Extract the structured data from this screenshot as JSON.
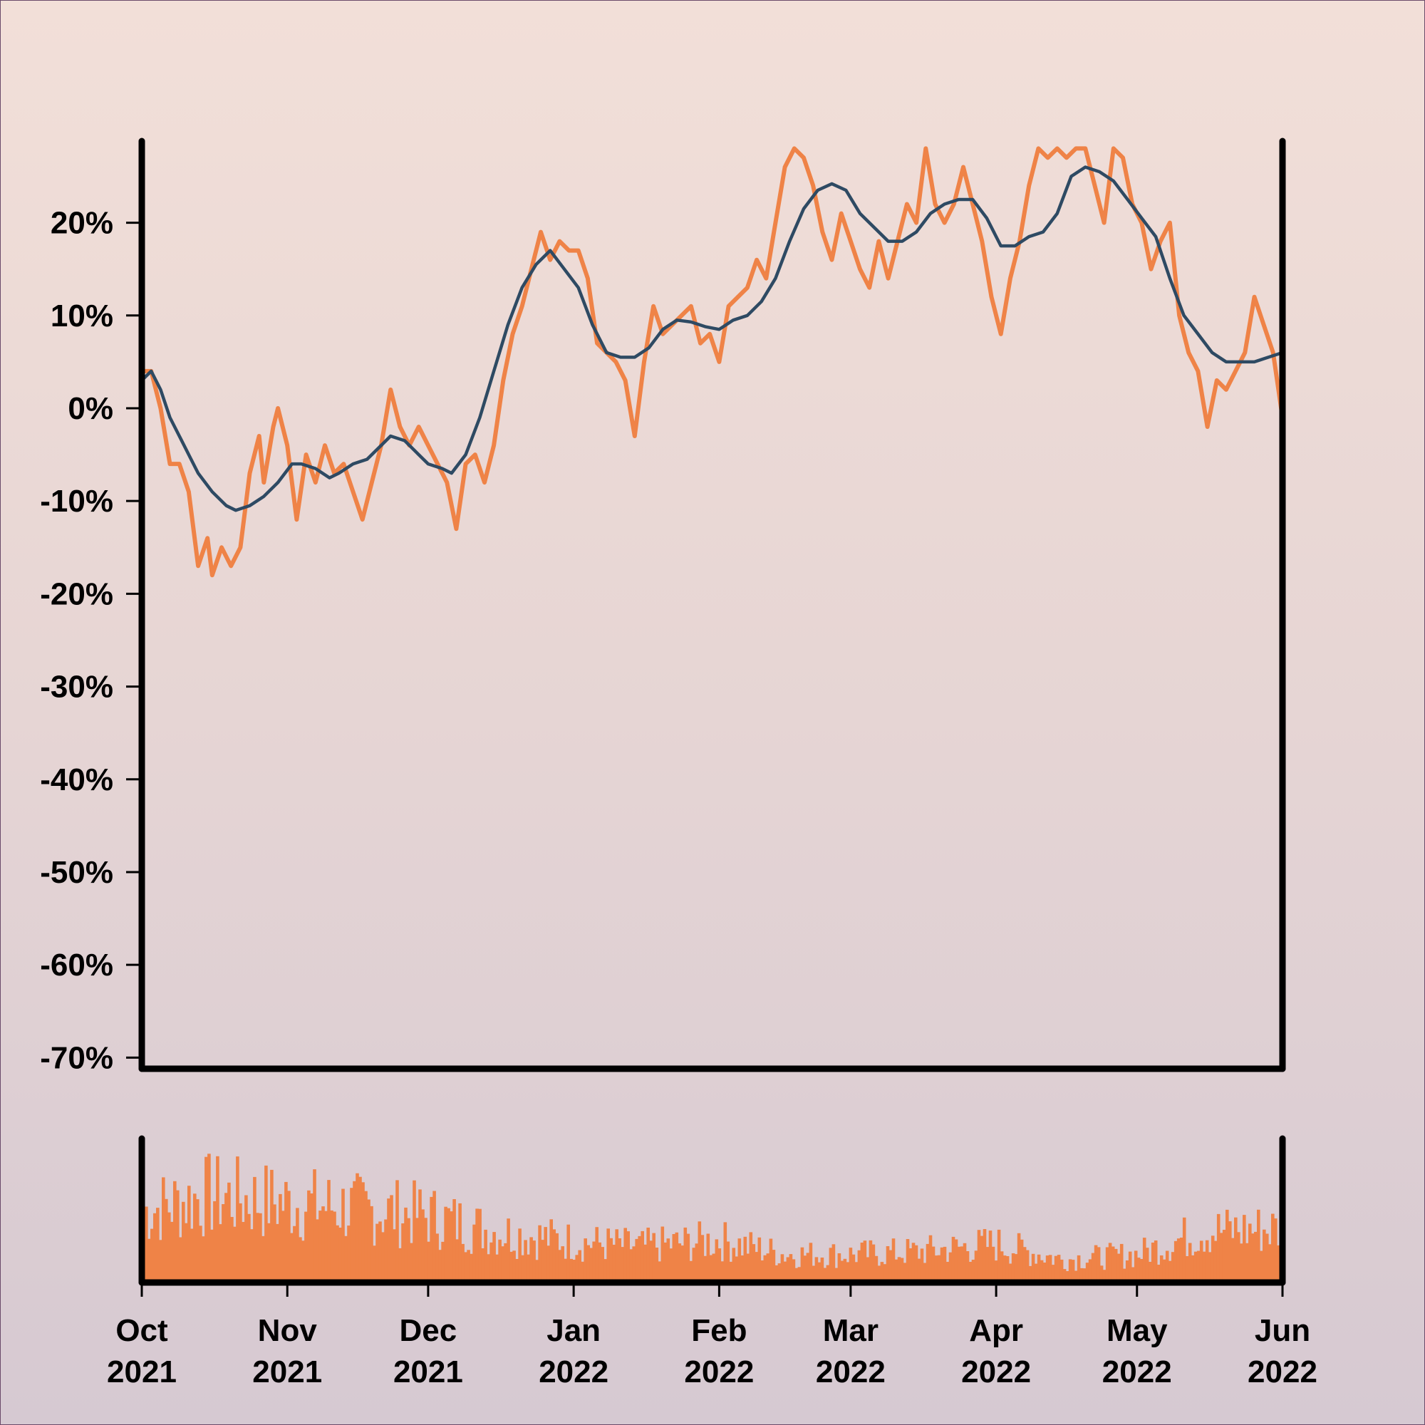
{
  "colors": {
    "price": "#ef8347",
    "moving_average": "#2e4a63",
    "volume": "#ef8347",
    "axis": "#000000"
  },
  "chart_data": [
    {
      "type": "line",
      "title": "",
      "xlabel": "",
      "ylabel": "",
      "ylim": [
        -70,
        28
      ],
      "xlim": [
        "2021-10-01",
        "2022-06-01"
      ],
      "y_ticks": [
        "20%",
        "10%",
        "0%",
        "-10%",
        "-20%",
        "-30%",
        "-40%",
        "-50%",
        "-60%",
        "-70%"
      ],
      "y_tick_values": [
        20,
        10,
        0,
        -10,
        -20,
        -30,
        -40,
        -50,
        -60,
        -70
      ],
      "grid": false,
      "series": [
        {
          "color": "#ef8347",
          "points": [
            [
              "2021-10-01",
              4
            ],
            [
              "2021-10-03",
              4
            ],
            [
              "2021-10-05",
              0
            ],
            [
              "2021-10-07",
              -6
            ],
            [
              "2021-10-09",
              -6
            ],
            [
              "2021-10-11",
              -9
            ],
            [
              "2021-10-13",
              -17
            ],
            [
              "2021-10-15",
              -14
            ],
            [
              "2021-10-16",
              -18
            ],
            [
              "2021-10-18",
              -15
            ],
            [
              "2021-10-20",
              -17
            ],
            [
              "2021-10-22",
              -15
            ],
            [
              "2021-10-24",
              -7
            ],
            [
              "2021-10-26",
              -3
            ],
            [
              "2021-10-27",
              -8
            ],
            [
              "2021-10-29",
              -2
            ],
            [
              "2021-10-30",
              0
            ],
            [
              "2021-11-01",
              -4
            ],
            [
              "2021-11-03",
              -12
            ],
            [
              "2021-11-05",
              -5
            ],
            [
              "2021-11-07",
              -8
            ],
            [
              "2021-11-09",
              -4
            ],
            [
              "2021-11-11",
              -7
            ],
            [
              "2021-11-13",
              -6
            ],
            [
              "2021-11-15",
              -9
            ],
            [
              "2021-11-17",
              -12
            ],
            [
              "2021-11-19",
              -8
            ],
            [
              "2021-11-21",
              -4
            ],
            [
              "2021-11-23",
              2
            ],
            [
              "2021-11-25",
              -2
            ],
            [
              "2021-11-27",
              -4
            ],
            [
              "2021-11-29",
              -2
            ],
            [
              "2021-12-01",
              -4
            ],
            [
              "2021-12-03",
              -6
            ],
            [
              "2021-12-05",
              -8
            ],
            [
              "2021-12-07",
              -13
            ],
            [
              "2021-12-09",
              -6
            ],
            [
              "2021-12-11",
              -5
            ],
            [
              "2021-12-13",
              -8
            ],
            [
              "2021-12-15",
              -4
            ],
            [
              "2021-12-17",
              3
            ],
            [
              "2021-12-19",
              8
            ],
            [
              "2021-12-21",
              11
            ],
            [
              "2021-12-23",
              15
            ],
            [
              "2021-12-25",
              19
            ],
            [
              "2021-12-27",
              16
            ],
            [
              "2021-12-29",
              18
            ],
            [
              "2021-12-31",
              17
            ],
            [
              "2022-01-02",
              17
            ],
            [
              "2022-01-04",
              14
            ],
            [
              "2022-01-06",
              7
            ],
            [
              "2022-01-08",
              6
            ],
            [
              "2022-01-10",
              5
            ],
            [
              "2022-01-12",
              3
            ],
            [
              "2022-01-14",
              -3
            ],
            [
              "2022-01-16",
              5
            ],
            [
              "2022-01-18",
              11
            ],
            [
              "2022-01-20",
              8
            ],
            [
              "2022-01-22",
              9
            ],
            [
              "2022-01-24",
              10
            ],
            [
              "2022-01-26",
              11
            ],
            [
              "2022-01-28",
              7
            ],
            [
              "2022-01-30",
              8
            ],
            [
              "2022-02-01",
              5
            ],
            [
              "2022-02-03",
              11
            ],
            [
              "2022-02-05",
              12
            ],
            [
              "2022-02-07",
              13
            ],
            [
              "2022-02-09",
              16
            ],
            [
              "2022-02-11",
              14
            ],
            [
              "2022-02-13",
              20
            ],
            [
              "2022-02-15",
              26
            ],
            [
              "2022-02-17",
              28
            ],
            [
              "2022-02-19",
              27
            ],
            [
              "2022-02-21",
              24
            ],
            [
              "2022-02-23",
              19
            ],
            [
              "2022-02-25",
              16
            ],
            [
              "2022-02-27",
              21
            ],
            [
              "2022-03-01",
              18
            ],
            [
              "2022-03-03",
              15
            ],
            [
              "2022-03-05",
              13
            ],
            [
              "2022-03-07",
              18
            ],
            [
              "2022-03-09",
              14
            ],
            [
              "2022-03-11",
              18
            ],
            [
              "2022-03-13",
              22
            ],
            [
              "2022-03-15",
              20
            ],
            [
              "2022-03-17",
              28
            ],
            [
              "2022-03-19",
              22
            ],
            [
              "2022-03-21",
              20
            ],
            [
              "2022-03-23",
              22
            ],
            [
              "2022-03-25",
              26
            ],
            [
              "2022-03-27",
              22
            ],
            [
              "2022-03-29",
              18
            ],
            [
              "2022-03-31",
              12
            ],
            [
              "2022-04-02",
              8
            ],
            [
              "2022-04-04",
              14
            ],
            [
              "2022-04-06",
              18
            ],
            [
              "2022-04-08",
              24
            ],
            [
              "2022-04-10",
              28
            ],
            [
              "2022-04-12",
              27
            ],
            [
              "2022-04-14",
              28
            ],
            [
              "2022-04-16",
              27
            ],
            [
              "2022-04-18",
              28
            ],
            [
              "2022-04-20",
              28
            ],
            [
              "2022-04-22",
              24
            ],
            [
              "2022-04-24",
              20
            ],
            [
              "2022-04-26",
              28
            ],
            [
              "2022-04-28",
              27
            ],
            [
              "2022-04-30",
              22
            ],
            [
              "2022-05-02",
              20
            ],
            [
              "2022-05-04",
              15
            ],
            [
              "2022-05-06",
              18
            ],
            [
              "2022-05-08",
              20
            ],
            [
              "2022-05-10",
              10
            ],
            [
              "2022-05-12",
              6
            ],
            [
              "2022-05-14",
              4
            ],
            [
              "2022-05-16",
              -2
            ],
            [
              "2022-05-18",
              3
            ],
            [
              "2022-05-20",
              2
            ],
            [
              "2022-05-22",
              4
            ],
            [
              "2022-05-24",
              6
            ],
            [
              "2022-05-26",
              12
            ],
            [
              "2022-05-28",
              9
            ],
            [
              "2022-05-30",
              6
            ],
            [
              "2022-06-01",
              -1
            ]
          ]
        },
        {
          "color": "#2e4a63",
          "points": [
            [
              "2021-10-01",
              3
            ],
            [
              "2021-10-03",
              4
            ],
            [
              "2021-10-05",
              2
            ],
            [
              "2021-10-07",
              -1
            ],
            [
              "2021-10-09",
              -3
            ],
            [
              "2021-10-11",
              -5
            ],
            [
              "2021-10-13",
              -7
            ],
            [
              "2021-10-16",
              -9
            ],
            [
              "2021-10-19",
              -10.5
            ],
            [
              "2021-10-21",
              -11
            ],
            [
              "2021-10-24",
              -10.5
            ],
            [
              "2021-10-27",
              -9.5
            ],
            [
              "2021-10-30",
              -8
            ],
            [
              "2021-11-02",
              -6
            ],
            [
              "2021-11-04",
              -6
            ],
            [
              "2021-11-07",
              -6.5
            ],
            [
              "2021-11-10",
              -7.5
            ],
            [
              "2021-11-12",
              -7
            ],
            [
              "2021-11-15",
              -6
            ],
            [
              "2021-11-18",
              -5.5
            ],
            [
              "2021-11-21",
              -4
            ],
            [
              "2021-11-23",
              -3
            ],
            [
              "2021-11-26",
              -3.5
            ],
            [
              "2021-11-29",
              -5
            ],
            [
              "2021-12-01",
              -6
            ],
            [
              "2021-12-04",
              -6.5
            ],
            [
              "2021-12-06",
              -7
            ],
            [
              "2021-12-09",
              -5
            ],
            [
              "2021-12-12",
              -1
            ],
            [
              "2021-12-15",
              4
            ],
            [
              "2021-12-18",
              9
            ],
            [
              "2021-12-21",
              13
            ],
            [
              "2021-12-24",
              15.5
            ],
            [
              "2021-12-27",
              17
            ],
            [
              "2021-12-30",
              15
            ],
            [
              "2022-01-02",
              13
            ],
            [
              "2022-01-05",
              9
            ],
            [
              "2022-01-08",
              6
            ],
            [
              "2022-01-11",
              5.5
            ],
            [
              "2022-01-14",
              5.5
            ],
            [
              "2022-01-17",
              6.5
            ],
            [
              "2022-01-20",
              8.5
            ],
            [
              "2022-01-23",
              9.5
            ],
            [
              "2022-01-26",
              9.3
            ],
            [
              "2022-01-29",
              8.8
            ],
            [
              "2022-02-01",
              8.5
            ],
            [
              "2022-02-04",
              9.5
            ],
            [
              "2022-02-07",
              10
            ],
            [
              "2022-02-10",
              11.5
            ],
            [
              "2022-02-13",
              14
            ],
            [
              "2022-02-16",
              18
            ],
            [
              "2022-02-19",
              21.5
            ],
            [
              "2022-02-22",
              23.5
            ],
            [
              "2022-02-25",
              24.2
            ],
            [
              "2022-02-28",
              23.5
            ],
            [
              "2022-03-03",
              21
            ],
            [
              "2022-03-06",
              19.5
            ],
            [
              "2022-03-09",
              18
            ],
            [
              "2022-03-12",
              18
            ],
            [
              "2022-03-15",
              19
            ],
            [
              "2022-03-18",
              21
            ],
            [
              "2022-03-21",
              22
            ],
            [
              "2022-03-24",
              22.5
            ],
            [
              "2022-03-27",
              22.5
            ],
            [
              "2022-03-30",
              20.5
            ],
            [
              "2022-04-02",
              17.5
            ],
            [
              "2022-04-05",
              17.5
            ],
            [
              "2022-04-08",
              18.5
            ],
            [
              "2022-04-11",
              19
            ],
            [
              "2022-04-14",
              21
            ],
            [
              "2022-04-17",
              25
            ],
            [
              "2022-04-20",
              26
            ],
            [
              "2022-04-23",
              25.5
            ],
            [
              "2022-04-26",
              24.5
            ],
            [
              "2022-04-29",
              22.5
            ],
            [
              "2022-05-02",
              20.5
            ],
            [
              "2022-05-05",
              18.5
            ],
            [
              "2022-05-08",
              14
            ],
            [
              "2022-05-11",
              10
            ],
            [
              "2022-05-14",
              8
            ],
            [
              "2022-05-17",
              6
            ],
            [
              "2022-05-20",
              5
            ],
            [
              "2022-05-23",
              5
            ],
            [
              "2022-05-26",
              5
            ],
            [
              "2022-05-29",
              5.5
            ],
            [
              "2022-06-01",
              6
            ]
          ]
        }
      ]
    },
    {
      "type": "bar",
      "title": "",
      "xlabel": "",
      "ylabel": "",
      "x_ticks": [
        "Oct\n2021",
        "Nov\n2021",
        "Dec\n2021",
        "Jan\n2022",
        "Feb\n2022",
        "Mar\n2022",
        "Apr\n2022",
        "May\n2022",
        "Jun\n2022"
      ],
      "x_tick_lines": [
        [
          "Oct",
          "2021"
        ],
        [
          "Nov",
          "2021"
        ],
        [
          "Dec",
          "2021"
        ],
        [
          "Jan",
          "2022"
        ],
        [
          "Feb",
          "2022"
        ],
        [
          "Mar",
          "2022"
        ],
        [
          "Apr",
          "2022"
        ],
        [
          "May",
          "2022"
        ],
        [
          "Jun",
          "2022"
        ]
      ],
      "x_tick_dates": [
        "2021-10-01",
        "2021-11-01",
        "2021-12-01",
        "2022-01-01",
        "2022-02-01",
        "2022-03-01",
        "2022-04-01",
        "2022-05-01",
        "2022-06-01"
      ],
      "ylim": [
        0,
        1
      ],
      "volume_profile": [
        [
          "2021-10-01",
          0.55
        ],
        [
          "2021-10-15",
          0.68
        ],
        [
          "2021-11-01",
          0.62
        ],
        [
          "2021-11-15",
          0.58
        ],
        [
          "2021-12-01",
          0.52
        ],
        [
          "2021-12-15",
          0.4
        ],
        [
          "2022-01-01",
          0.32
        ],
        [
          "2022-01-15",
          0.28
        ],
        [
          "2022-02-01",
          0.33
        ],
        [
          "2022-02-15",
          0.22
        ],
        [
          "2022-03-01",
          0.22
        ],
        [
          "2022-03-15",
          0.24
        ],
        [
          "2022-04-01",
          0.3
        ],
        [
          "2022-04-15",
          0.18
        ],
        [
          "2022-05-01",
          0.22
        ],
        [
          "2022-05-15",
          0.4
        ],
        [
          "2022-06-01",
          0.42
        ]
      ]
    }
  ]
}
